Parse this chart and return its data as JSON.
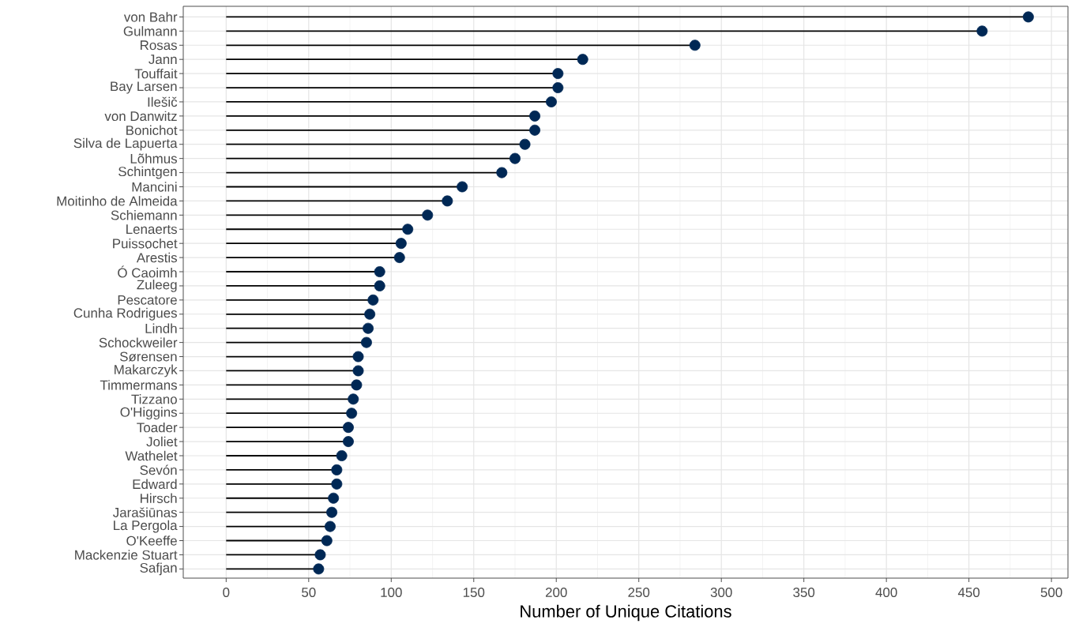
{
  "chart_data": {
    "type": "lollipop",
    "orientation": "horizontal",
    "xlabel": "Number of Unique Citations",
    "categories": [
      "von Bahr",
      "Gulmann",
      "Rosas",
      "Jann",
      "Touffait",
      "Bay Larsen",
      "Ilešič",
      "von Danwitz",
      "Bonichot",
      "Silva de Lapuerta",
      "Lõhmus",
      "Schintgen",
      "Mancini",
      "Moitinho de Almeida",
      "Schiemann",
      "Lenaerts",
      "Puissochet",
      "Arestis",
      "Ó Caoimh",
      "Zuleeg",
      "Pescatore",
      "Cunha Rodrigues",
      "Lindh",
      "Schockweiler",
      "Sørensen",
      "Makarczyk",
      "Timmermans",
      "Tizzano",
      "O'Higgins",
      "Toader",
      "Joliet",
      "Wathelet",
      "Sevón",
      "Edward",
      "Hirsch",
      "Jarašiūnas",
      "La Pergola",
      "O'Keeffe",
      "Mackenzie Stuart",
      "Safjan"
    ],
    "values": [
      486,
      458,
      284,
      216,
      201,
      201,
      197,
      187,
      187,
      181,
      175,
      167,
      143,
      134,
      122,
      110,
      106,
      105,
      93,
      93,
      89,
      87,
      86,
      85,
      80,
      80,
      79,
      77,
      76,
      74,
      74,
      70,
      67,
      67,
      65,
      64,
      63,
      61,
      57,
      56
    ],
    "color": "#002855",
    "marker": "circle",
    "grid": true,
    "xlim": [
      -26,
      510
    ],
    "xticks": [
      0,
      50,
      100,
      150,
      200,
      250,
      300,
      350,
      400,
      450,
      500
    ]
  }
}
